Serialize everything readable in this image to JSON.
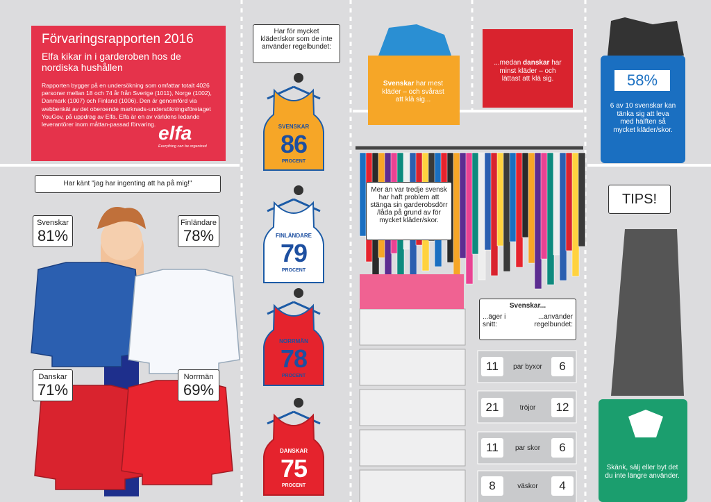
{
  "header": {
    "title": "Förvaringsrapporten 2016",
    "subtitle": "Elfa kikar in i garderoben hos de nordiska hushållen",
    "body": "Rapporten bygger på en undersökning som omfattar totalt 4026 personer mellan 18 och 74 år från Sverige (1011), Norge (1002), Danmark (1007) och Finland (1006). Den är genomförd via webbenkät av det oberoende marknads-undersökningsföretaget YouGov, på uppdrag av Elfa. Elfa är en av världens ledande leverantörer inom måttan-passad förvaring.",
    "logo": "elfa",
    "tagline": "Everything can be organized"
  },
  "nothing_to_wear": {
    "question": "Har känt \"jag har ingenting att ha på mig!\"",
    "items": [
      {
        "country": "Svenskar",
        "value": "81%"
      },
      {
        "country": "Finländare",
        "value": "78%"
      },
      {
        "country": "Danskar",
        "value": "71%"
      },
      {
        "country": "Norrmän",
        "value": "69%"
      }
    ]
  },
  "too_many_clothes": {
    "question": "Har för mycket kläder/skor som de inte använder regelbundet:",
    "shirts": [
      {
        "country": "SVENSKAR",
        "value": "86",
        "unit": "PROCENT"
      },
      {
        "country": "FINLÄNDARE",
        "value": "79",
        "unit": "PROCENT"
      },
      {
        "country": "NORRMÄN",
        "value": "78",
        "unit": "PROCENT"
      },
      {
        "country": "DANSKAR",
        "value": "75",
        "unit": "PROCENT"
      }
    ]
  },
  "most_clothes": {
    "bold": "Svenskar",
    "text": "har mest kläder – och svårast att klä sig..."
  },
  "least_clothes": {
    "prefix": "...medan",
    "bold": "danskar",
    "text": "har minst kläder – och lättast att klä sig."
  },
  "half": {
    "value": "58%",
    "text": "6 av 10 svenskar kan tänka sig att leva med hälften så mycket kläder/skor."
  },
  "door": "Mer än var tredje svensk har haft problem att stänga sin garderobsdörr /låda på grund av för mycket kläder/skor.",
  "counts": {
    "title": "Svenskar...",
    "left_header": "...äger i snitt:",
    "right_header": "...använder regelbundet:",
    "rows": [
      {
        "owned": "11",
        "item": "par byxor",
        "used": "6"
      },
      {
        "owned": "21",
        "item": "tröjor",
        "used": "12"
      },
      {
        "owned": "11",
        "item": "par skor",
        "used": "6"
      },
      {
        "owned": "8",
        "item": "väskor",
        "used": "4"
      }
    ]
  },
  "tips": {
    "title": "TIPS!",
    "text": "Skänk, sälj eller byt det du inte längre använder."
  }
}
